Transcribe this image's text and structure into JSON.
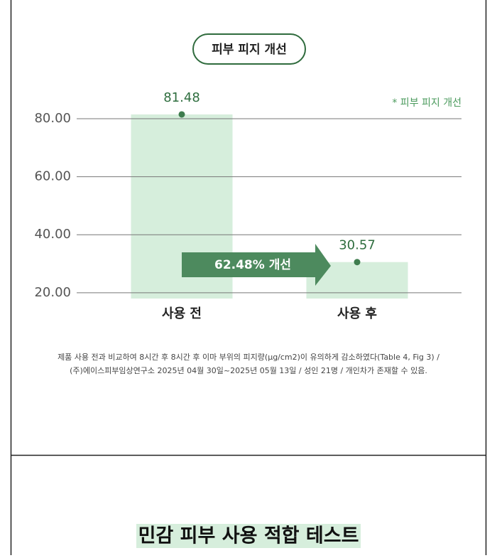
{
  "chart_data": {
    "type": "bar",
    "title": "피부 피지 개선",
    "categories": [
      "사용 전",
      "사용 후"
    ],
    "series": [
      {
        "name": "* 피부 피지 개선",
        "color": "#d6eedc",
        "values": [
          81.48,
          30.57
        ]
      }
    ],
    "annotation": "62.48% 개선",
    "ylim": [
      18,
      85
    ],
    "yticks": [
      {
        "value": 20,
        "label": "20.00"
      },
      {
        "value": 40,
        "label": "40.00"
      },
      {
        "value": 60,
        "label": "60.00"
      },
      {
        "value": 80,
        "label": "80.00"
      }
    ],
    "grid": true
  },
  "footnote": [
    "제품 사용 전과 비교하여 8시간 후 8시간 후 이마 부위의 피지량(μg/cm2)이 유의하게 감소하였다(Table 4, Fig 3) /",
    "(주)에이스피부임상연구소 2025년 04월 30일~2025년 05월 13일 / 성인 21명 / 개인차가 존재할 수 있음."
  ],
  "section_title": "민감 피부 사용 적합 테스트"
}
